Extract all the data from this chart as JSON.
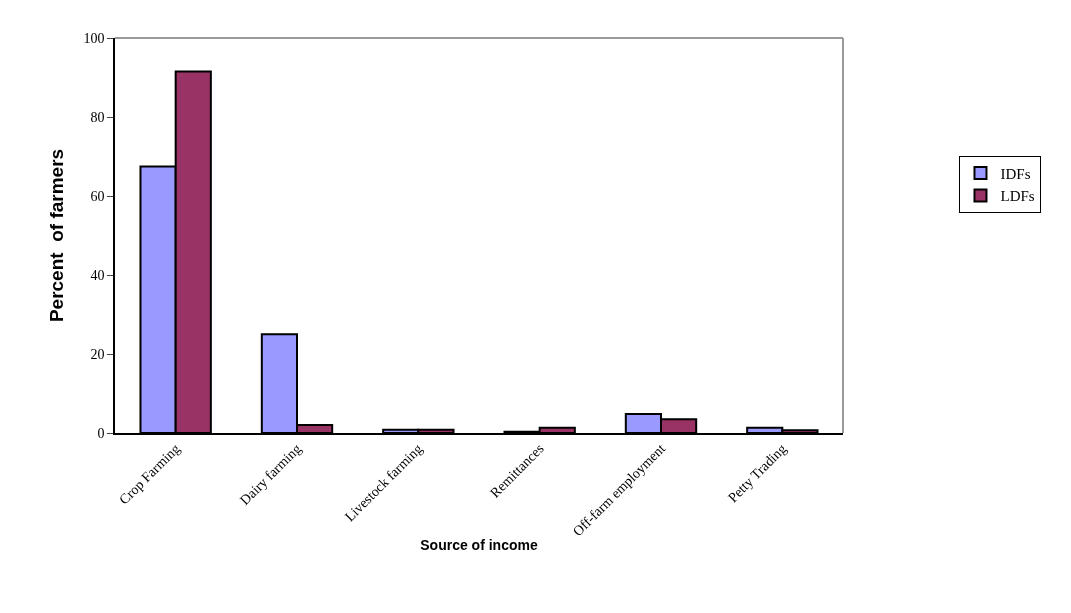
{
  "chart_data": {
    "type": "bar",
    "xlabel": "Source of income",
    "ylabel": "Percent  of farmers",
    "categories": [
      "Crop Farming",
      "Dairy farming",
      "Livestock farming",
      "Remittances",
      "Off-farm employment",
      "Petty Trading"
    ],
    "series": [
      {
        "name": "IDFs",
        "color": "#9999ff",
        "values": [
          67.5,
          25,
          0.8,
          0.3,
          4.8,
          1.3
        ]
      },
      {
        "name": "LDFs",
        "color": "#993366",
        "values": [
          91.5,
          2,
          0.8,
          1.3,
          3.5,
          0.7
        ]
      }
    ],
    "ylim": [
      0,
      100
    ],
    "yticks": [
      0,
      20,
      40,
      60,
      80,
      100
    ],
    "legend": "right"
  }
}
